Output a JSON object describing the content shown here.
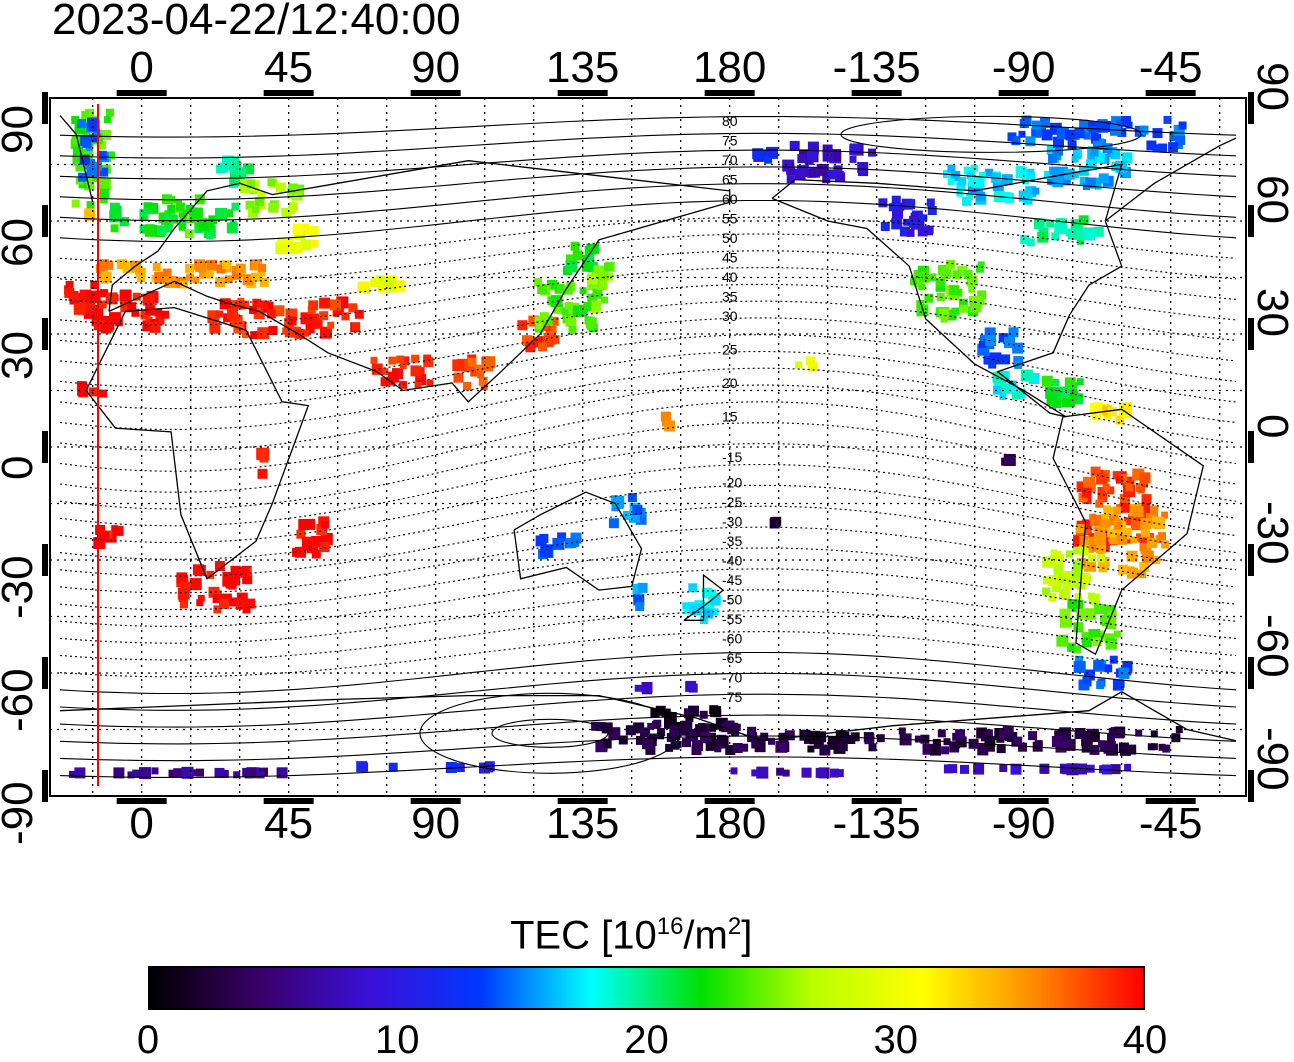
{
  "title": "2023-04-22/12:40:00",
  "map": {
    "lon_ticks": [
      "0",
      "45",
      "90",
      "135",
      "180",
      "-135",
      "-90",
      "-45"
    ],
    "lon_values": [
      0,
      45,
      90,
      135,
      180,
      225,
      270,
      315
    ],
    "lat_ticks_left": [
      "90",
      "60",
      "30",
      "0",
      "-30",
      "-60",
      "-90"
    ],
    "lat_ticks_right": [
      "90",
      "60",
      "30",
      "0",
      "-30",
      "-60",
      "-90"
    ],
    "lat_values": [
      90,
      60,
      30,
      0,
      -30,
      -60,
      -90
    ],
    "lon_range": [
      -25,
      335
    ],
    "lat_range": [
      -90,
      90
    ],
    "contour_labels": [
      "80",
      "75",
      "70",
      "65",
      "60",
      "55",
      "50",
      "45",
      "40",
      "35",
      "30",
      "25",
      "20",
      "15",
      "-15",
      "-20",
      "-25",
      "-30",
      "-35",
      "-40",
      "-45",
      "-50",
      "-55",
      "-60",
      "-65",
      "-70",
      "-75"
    ],
    "terminator_color": "#ff0000"
  },
  "colorbar": {
    "label": "TEC  [10",
    "label_exp": "16",
    "label_unit": "/m",
    "label_unit_exp": "2",
    "label_close": "]",
    "ticks": [
      "0",
      "10",
      "20",
      "30",
      "40"
    ],
    "range": [
      0,
      40
    ]
  },
  "colors": {
    "stops": [
      "#000000",
      "#3a0069",
      "#3a10d8",
      "#0038ff",
      "#00ffff",
      "#00e000",
      "#b8ff00",
      "#ffff00",
      "#ff8c00",
      "#ff0000"
    ]
  }
}
